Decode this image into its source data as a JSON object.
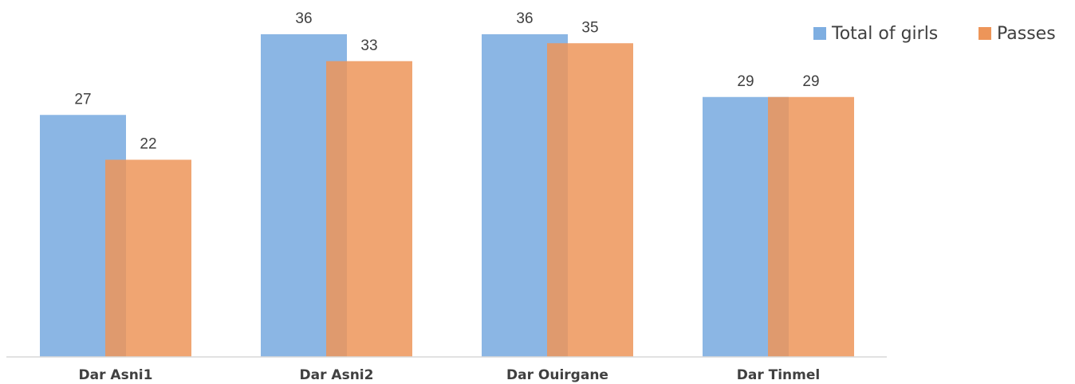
{
  "chart_data": {
    "type": "bar",
    "categories": [
      "Dar Asni1",
      "Dar Asni2",
      "Dar Ouirgane",
      "Dar Tinmel"
    ],
    "series": [
      {
        "name": "Total of girls",
        "values": [
          27,
          36,
          36,
          29
        ],
        "color": "#7eaee1"
      },
      {
        "name": "Passes",
        "values": [
          22,
          33,
          35,
          29
        ],
        "color": "#ed9559"
      }
    ],
    "ylim": [
      0,
      36
    ],
    "legend_position": "top-right",
    "grid": false,
    "data_labels": true
  }
}
